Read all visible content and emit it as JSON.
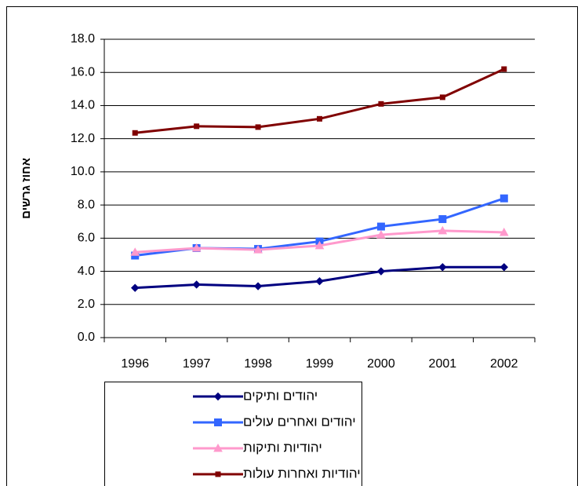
{
  "chart_data": {
    "type": "line",
    "ylabel": "אחוז גרשים",
    "categories": [
      "1996",
      "1997",
      "1998",
      "1999",
      "2000",
      "2001",
      "2002"
    ],
    "series": [
      {
        "name": "יהודים ותיקים",
        "color": "#000080",
        "marker": "diamond",
        "values": [
          3.0,
          3.2,
          3.1,
          3.4,
          4.0,
          4.25,
          4.25
        ]
      },
      {
        "name": "יהודים ואחרים עולים",
        "color": "#3366ff",
        "marker": "square",
        "values": [
          4.95,
          5.4,
          5.35,
          5.8,
          6.7,
          7.15,
          8.4
        ]
      },
      {
        "name": "יהודיות ותיקות",
        "color": "#ff99cc",
        "marker": "triangle",
        "values": [
          5.15,
          5.4,
          5.3,
          5.55,
          6.2,
          6.45,
          6.35
        ]
      },
      {
        "name": "יהודיות ואחרות עולות",
        "color": "#800000",
        "marker": "x",
        "values": [
          12.35,
          12.75,
          12.7,
          13.2,
          14.1,
          14.5,
          16.2
        ]
      }
    ],
    "ylim": [
      0,
      18
    ],
    "yticks": [
      {
        "value": 0,
        "label": "0.0"
      },
      {
        "value": 2,
        "label": "2.0"
      },
      {
        "value": 4,
        "label": "4.0"
      },
      {
        "value": 6,
        "label": "6.0"
      },
      {
        "value": 8,
        "label": "8.0"
      },
      {
        "value": 10,
        "label": "10.0"
      },
      {
        "value": 12,
        "label": "12.0"
      },
      {
        "value": 14,
        "label": "14.0"
      },
      {
        "value": 16,
        "label": "16.0"
      },
      {
        "value": 18,
        "label": "18.0"
      }
    ],
    "grid": true,
    "legend": "bottom"
  }
}
